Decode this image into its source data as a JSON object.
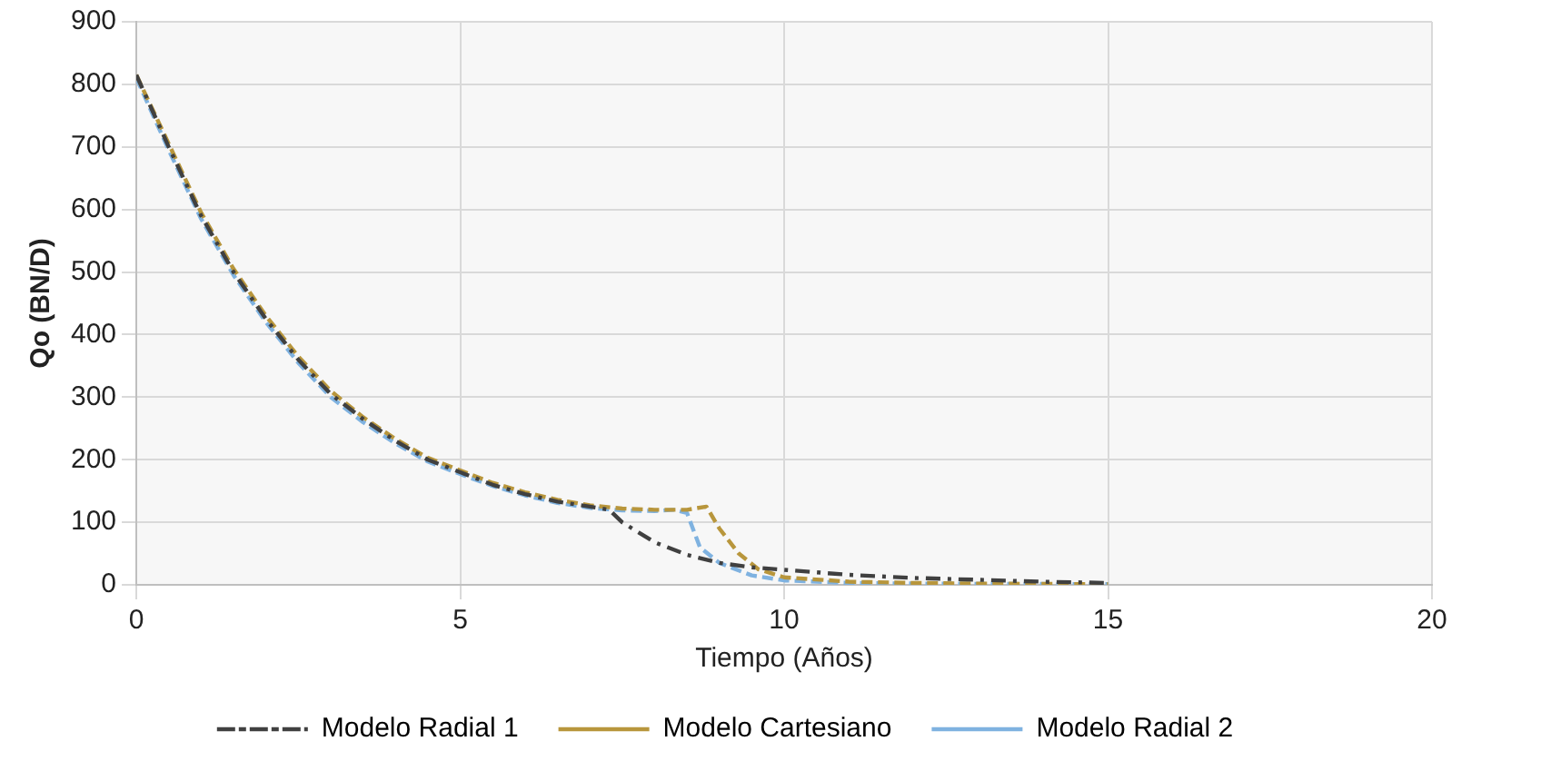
{
  "chart_data": {
    "type": "line",
    "xlabel": "Tiempo (Años)",
    "ylabel": "Qo (BN/D)",
    "xlim": [
      0,
      20
    ],
    "xticks": [
      0,
      5,
      10,
      15,
      20
    ],
    "ylim": [
      0,
      900
    ],
    "yticks": [
      0,
      100,
      200,
      300,
      400,
      500,
      600,
      700,
      800,
      900
    ],
    "grid": true,
    "legend": "bottom",
    "marker": "none",
    "series": [
      {
        "name": "Modelo Radial 1",
        "color": "#404040",
        "line_style": "dashdot",
        "x": [
          0,
          0.5,
          1,
          1.5,
          2,
          2.5,
          3,
          3.5,
          4,
          4.5,
          5,
          5.5,
          6,
          6.5,
          7,
          7.3,
          7.5,
          8,
          8.5,
          9,
          9.5,
          10,
          11,
          12,
          13,
          14,
          15
        ],
        "values": [
          815,
          700,
          590,
          500,
          425,
          360,
          305,
          265,
          230,
          200,
          180,
          160,
          145,
          133,
          125,
          120,
          100,
          68,
          48,
          35,
          28,
          24,
          16,
          11,
          8,
          5,
          3
        ]
      },
      {
        "name": "Modelo Cartesiano",
        "color": "#b8963c",
        "line_style": "dashed",
        "x": [
          0,
          0.5,
          1,
          1.5,
          2,
          2.5,
          3,
          3.5,
          4,
          4.5,
          5,
          5.5,
          6,
          6.5,
          7,
          7.5,
          8,
          8.5,
          8.8,
          9,
          9.3,
          9.6,
          10,
          11,
          12,
          13,
          15
        ],
        "values": [
          815,
          705,
          595,
          505,
          430,
          365,
          310,
          268,
          233,
          203,
          183,
          163,
          148,
          136,
          127,
          122,
          120,
          120,
          125,
          90,
          50,
          25,
          12,
          5,
          3,
          2,
          1
        ]
      },
      {
        "name": "Modelo Radial 2",
        "color": "#7fb2e0",
        "line_style": "dashed",
        "x": [
          0,
          0.5,
          1,
          1.5,
          2,
          2.5,
          3,
          3.5,
          4,
          4.5,
          5,
          5.5,
          6,
          6.5,
          7,
          7.5,
          8,
          8.3,
          8.5,
          8.7,
          9,
          9.5,
          10,
          11,
          12,
          15
        ],
        "values": [
          810,
          695,
          585,
          495,
          420,
          355,
          300,
          260,
          226,
          197,
          177,
          158,
          143,
          131,
          123,
          119,
          118,
          120,
          115,
          60,
          35,
          15,
          7,
          3,
          2,
          1
        ]
      }
    ]
  }
}
